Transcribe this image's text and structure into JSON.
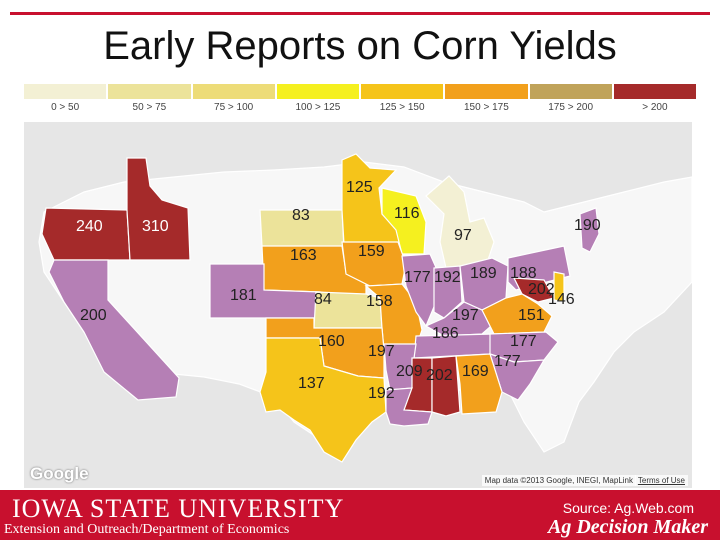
{
  "title": "Early Reports on Corn Yields",
  "legend": [
    {
      "label": "0 > 50",
      "color": "#f3f0d4"
    },
    {
      "label": "50 > 75",
      "color": "#ece39a"
    },
    {
      "label": "75 > 100",
      "color": "#eddc78"
    },
    {
      "label": "100 > 125",
      "color": "#f5f01f"
    },
    {
      "label": "125 > 150",
      "color": "#f5c41a"
    },
    {
      "label": "150 > 175",
      "color": "#f2a01c"
    },
    {
      "label": "175 > 200",
      "color": "#c0a35a"
    },
    {
      "label": "> 200",
      "color": "#a52a2a"
    }
  ],
  "map": {
    "google_logo": "Google",
    "map_data": "Map data ©2013 Google, INEGI, MapLink",
    "terms": "Terms of Use",
    "colors": {
      "no_data": "#f7f7f7",
      "lake": "#b9c5e3",
      "purple": "#b57fb5",
      "red": "#a52a2a",
      "orange": "#f2a01c",
      "gold": "#f5c41a",
      "pale": "#ece39a",
      "paler": "#f3f0d4",
      "yellow": "#f5f01f"
    },
    "states": [
      {
        "id": "oregon",
        "value": "240"
      },
      {
        "id": "idaho",
        "value": "310"
      },
      {
        "id": "california",
        "value": "200"
      },
      {
        "id": "minnesota",
        "value": "125"
      },
      {
        "id": "south-dakota",
        "value": "83"
      },
      {
        "id": "wisconsin",
        "value": "116"
      },
      {
        "id": "michigan",
        "value": "97"
      },
      {
        "id": "new-york",
        "value": "190"
      },
      {
        "id": "nebraska",
        "value": "163"
      },
      {
        "id": "iowa",
        "value": "159"
      },
      {
        "id": "illinois",
        "value": "177"
      },
      {
        "id": "indiana",
        "value": "192"
      },
      {
        "id": "ohio",
        "value": "189"
      },
      {
        "id": "pennsylvania",
        "value": "188"
      },
      {
        "id": "maryland",
        "value": "202"
      },
      {
        "id": "delaware",
        "value": "146"
      },
      {
        "id": "colorado",
        "value": "181"
      },
      {
        "id": "kansas",
        "value": "84"
      },
      {
        "id": "missouri",
        "value": "158"
      },
      {
        "id": "kentucky",
        "value": "197"
      },
      {
        "id": "virginia",
        "value": "151"
      },
      {
        "id": "tennessee",
        "value": "186"
      },
      {
        "id": "north-carolina",
        "value": "177"
      },
      {
        "id": "oklahoma",
        "value": "160"
      },
      {
        "id": "arkansas",
        "value": "197"
      },
      {
        "id": "south-carolina",
        "value": "177"
      },
      {
        "id": "mississippi",
        "value": "209"
      },
      {
        "id": "alabama",
        "value": "202"
      },
      {
        "id": "georgia",
        "value": "169"
      },
      {
        "id": "texas",
        "value": "137"
      },
      {
        "id": "louisiana",
        "value": "192"
      }
    ]
  },
  "footer": {
    "university": "IOWA STATE UNIVERSITY",
    "extension": "Extension and Outreach/Department of Economics",
    "source": "Source: Ag.Web.com",
    "program": "Ag Decision Maker"
  }
}
